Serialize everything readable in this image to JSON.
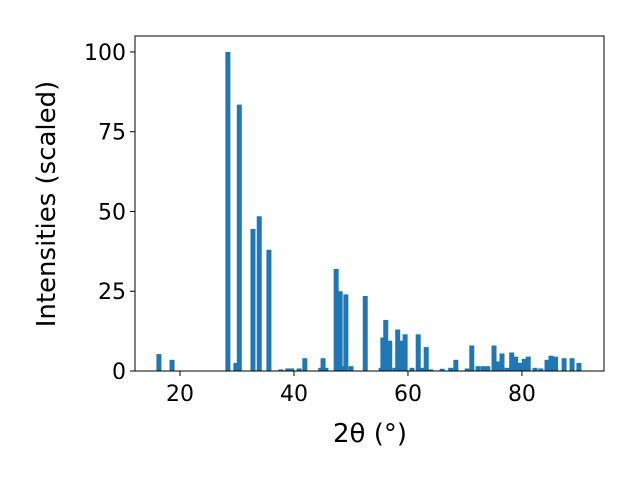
{
  "chart_data": {
    "type": "bar",
    "xlabel": "2θ (°)",
    "ylabel": "Intensities (scaled)",
    "color": "#1f77b4",
    "x": [
      16.3,
      18.6,
      28.4,
      29.8,
      30.4,
      32.8,
      33.9,
      35.6,
      37.7,
      38.9,
      39.6,
      40.9,
      41.9,
      44.7,
      45.1,
      45.6,
      47.4,
      48.1,
      48.6,
      49.1,
      50.0,
      52.5,
      55.3,
      55.6,
      56.1,
      56.8,
      57.7,
      58.2,
      58.8,
      59.5,
      60.7,
      61.8,
      62.5,
      63.2,
      64.0,
      66.0,
      67.5,
      68.4,
      70.4,
      71.2,
      72.3,
      73.2,
      74.0,
      75.1,
      75.8,
      76.5,
      77.4,
      78.2,
      78.9,
      79.6,
      80.4,
      81.1,
      82.3,
      83.3,
      84.4,
      85.1,
      85.9,
      87.4,
      88.8,
      90.0
    ],
    "values": [
      5.3,
      3.5,
      100,
      2.5,
      83.5,
      44.5,
      48.5,
      38,
      0.5,
      0.8,
      0.8,
      0.8,
      4,
      1,
      4,
      1,
      32,
      25,
      1.5,
      24,
      1.5,
      23.5,
      1,
      10.5,
      16,
      9.5,
      1,
      13,
      9.5,
      11.5,
      1,
      11.5,
      1,
      7.5,
      0.5,
      0.7,
      1,
      3.5,
      0.8,
      8,
      1.5,
      1.5,
      1.5,
      8,
      3,
      5.5,
      1,
      5.8,
      4.5,
      2.5,
      3.8,
      4.5,
      1,
      0.8,
      3.5,
      4.8,
      4.5,
      4,
      4,
      2.5
    ],
    "xlim": [
      12.1,
      94.4
    ],
    "ylim": [
      0,
      105
    ],
    "xticks": [
      20,
      40,
      60,
      80
    ],
    "yticks": [
      0,
      25,
      50,
      75,
      100
    ]
  }
}
